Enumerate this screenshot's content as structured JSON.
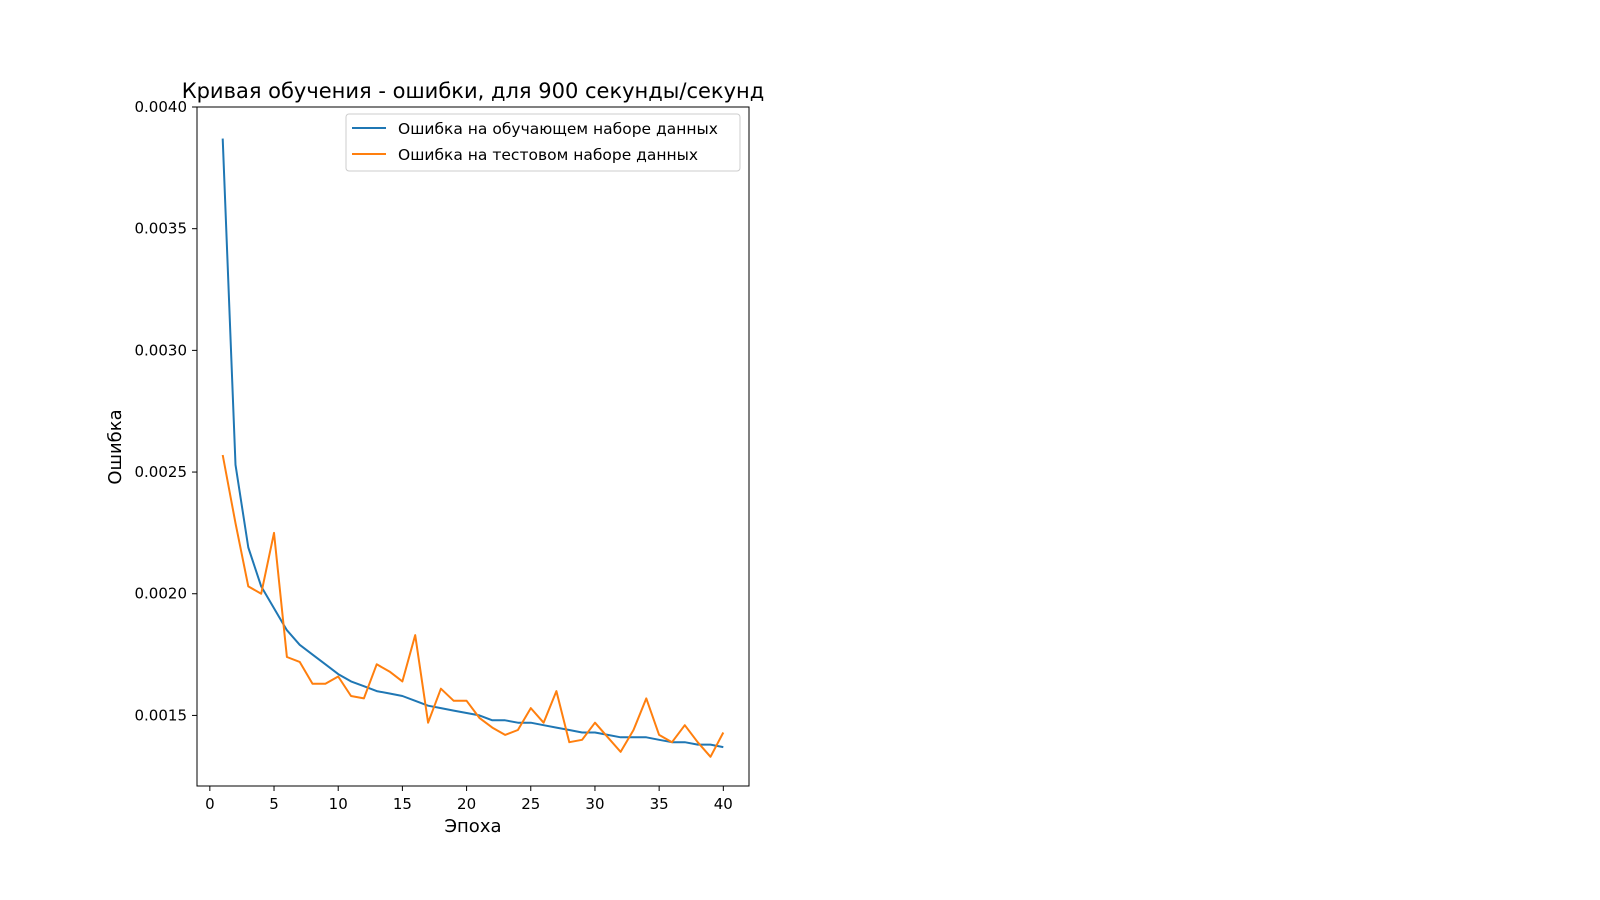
{
  "chart_data": {
    "type": "line",
    "title": "Кривая обучения - ошибки, для 900 секунды/секунд",
    "xlabel": "Эпоха",
    "ylabel": "Ошибка",
    "xlim": [
      -1,
      42
    ],
    "ylim": [
      0.00121,
      0.004
    ],
    "x_ticks": [
      0,
      5,
      10,
      15,
      20,
      25,
      30,
      35,
      40
    ],
    "x_tick_labels": [
      "0",
      "5",
      "10",
      "15",
      "20",
      "25",
      "30",
      "35",
      "40"
    ],
    "y_ticks": [
      0.0015,
      0.002,
      0.0025,
      0.003,
      0.0035,
      0.004
    ],
    "y_tick_labels": [
      "0.0015",
      "0.0020",
      "0.0025",
      "0.0030",
      "0.0035",
      "0.0040"
    ],
    "grid": false,
    "legend_position": "top-right",
    "x": [
      1,
      2,
      3,
      4,
      5,
      6,
      7,
      8,
      9,
      10,
      11,
      12,
      13,
      14,
      15,
      16,
      17,
      18,
      19,
      20,
      21,
      22,
      23,
      24,
      25,
      26,
      27,
      28,
      29,
      30,
      31,
      32,
      33,
      34,
      35,
      36,
      37,
      38,
      39,
      40
    ],
    "series": [
      {
        "name": "Ошибка на обучающем наборе данных",
        "color": "#1f77b4",
        "values": [
          0.00387,
          0.00253,
          0.00219,
          0.00203,
          0.00194,
          0.00185,
          0.00179,
          0.00175,
          0.00171,
          0.00167,
          0.00164,
          0.00162,
          0.0016,
          0.00159,
          0.00158,
          0.00156,
          0.00154,
          0.00153,
          0.00152,
          0.00151,
          0.0015,
          0.00148,
          0.00148,
          0.00147,
          0.00147,
          0.00146,
          0.00145,
          0.00144,
          0.00143,
          0.00143,
          0.00142,
          0.00141,
          0.00141,
          0.00141,
          0.0014,
          0.00139,
          0.00139,
          0.00138,
          0.00138,
          0.00137
        ]
      },
      {
        "name": "Ошибка на тестовом наборе данных",
        "color": "#ff7f0e",
        "values": [
          0.00257,
          0.00229,
          0.00203,
          0.002,
          0.00225,
          0.00174,
          0.00172,
          0.00163,
          0.00163,
          0.00166,
          0.00158,
          0.00157,
          0.00171,
          0.00168,
          0.00164,
          0.00183,
          0.00147,
          0.00161,
          0.00156,
          0.00156,
          0.00149,
          0.00145,
          0.00142,
          0.00144,
          0.00153,
          0.00147,
          0.0016,
          0.00139,
          0.0014,
          0.00147,
          0.00141,
          0.00135,
          0.00144,
          0.00157,
          0.00142,
          0.00139,
          0.00146,
          0.00139,
          0.00133,
          0.00143
        ]
      }
    ]
  }
}
